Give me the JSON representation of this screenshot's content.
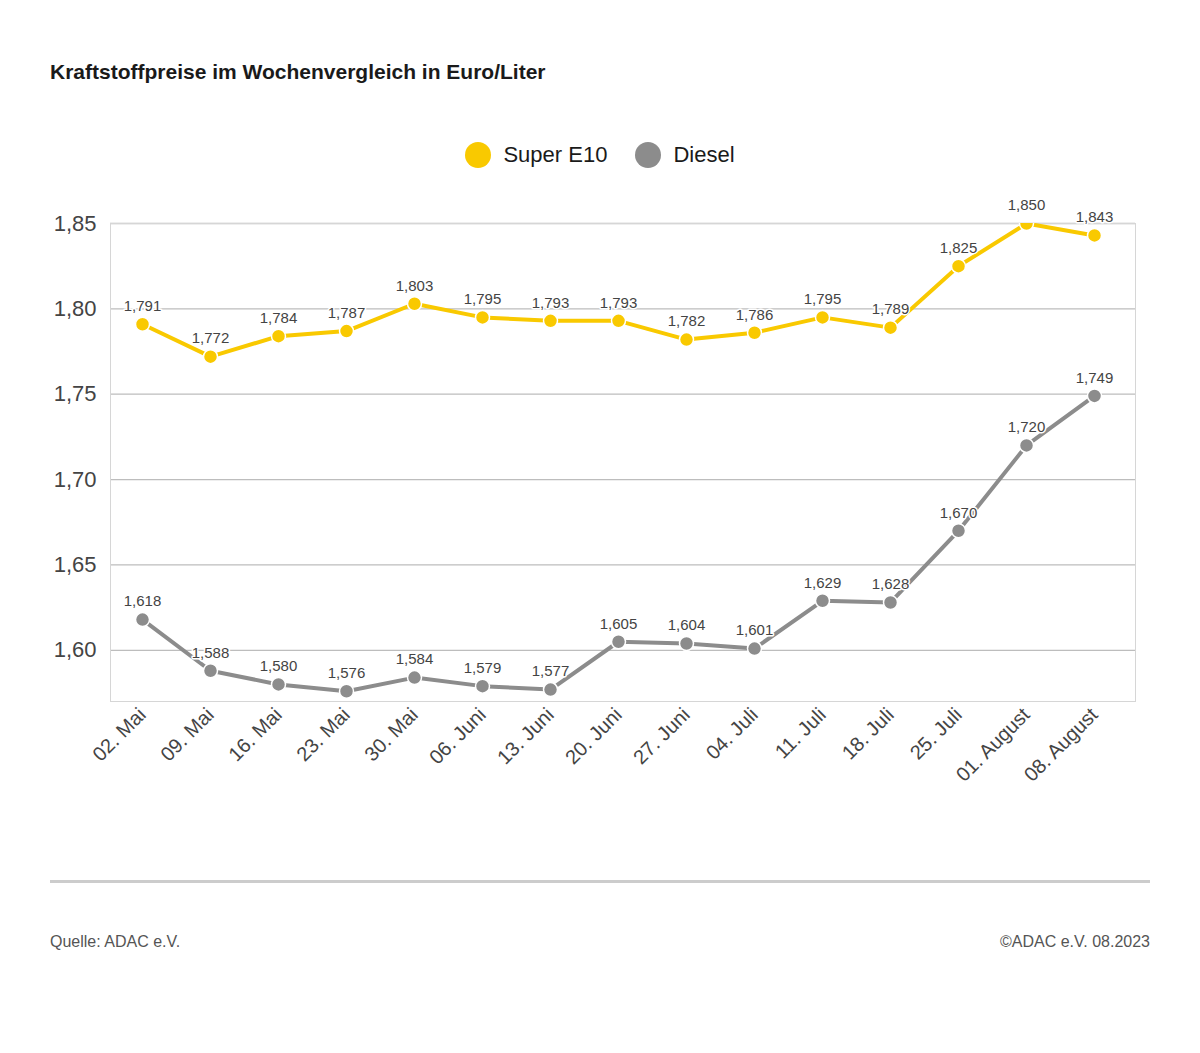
{
  "chart_data": {
    "type": "line",
    "title": "Kraftstoffpreise im Wochenvergleich in Euro/Liter",
    "caption": "Quelle: ADAC e.V.",
    "annotations": [
      "©ADAC e.V. 08.2023"
    ],
    "categories": [
      "02. Mai",
      "09. Mai",
      "16. Mai",
      "23. Mai",
      "30. Mai",
      "06. Juni",
      "13. Juni",
      "20. Juni",
      "27. Juni",
      "04. Juli",
      "11. Juli",
      "18. Juli",
      "25. Juli",
      "01. August",
      "08. August"
    ],
    "series": [
      {
        "name": "Super E10",
        "color": "#f9c900",
        "values": [
          1.791,
          1.772,
          1.784,
          1.787,
          1.803,
          1.795,
          1.793,
          1.793,
          1.782,
          1.786,
          1.795,
          1.789,
          1.825,
          1.85,
          1.843
        ],
        "value_labels": [
          "1,791",
          "1,772",
          "1,784",
          "1,787",
          "1,803",
          "1,795",
          "1,793",
          "1,793",
          "1,782",
          "1,786",
          "1,795",
          "1,789",
          "1,825",
          "1,850",
          "1,843"
        ]
      },
      {
        "name": "Diesel",
        "color": "#8c8c8c",
        "values": [
          1.618,
          1.588,
          1.58,
          1.576,
          1.584,
          1.579,
          1.577,
          1.605,
          1.604,
          1.601,
          1.629,
          1.628,
          1.67,
          1.72,
          1.749
        ],
        "value_labels": [
          "1,618",
          "1,588",
          "1,580",
          "1,576",
          "1,584",
          "1,579",
          "1,577",
          "1,605",
          "1,604",
          "1,601",
          "1,629",
          "1,628",
          "1,670",
          "1,720",
          "1,749"
        ]
      }
    ],
    "ylim": [
      1.57,
      1.85
    ],
    "yticks": [
      {
        "value": 1.6,
        "label": "1,60"
      },
      {
        "value": 1.65,
        "label": "1,65"
      },
      {
        "value": 1.7,
        "label": "1,70"
      },
      {
        "value": 1.75,
        "label": "1,75"
      },
      {
        "value": 1.8,
        "label": "1,80"
      },
      {
        "value": 1.85,
        "label": "1,85"
      }
    ],
    "grid": true,
    "legend": "top",
    "data_labels": true,
    "marker": "circle"
  }
}
